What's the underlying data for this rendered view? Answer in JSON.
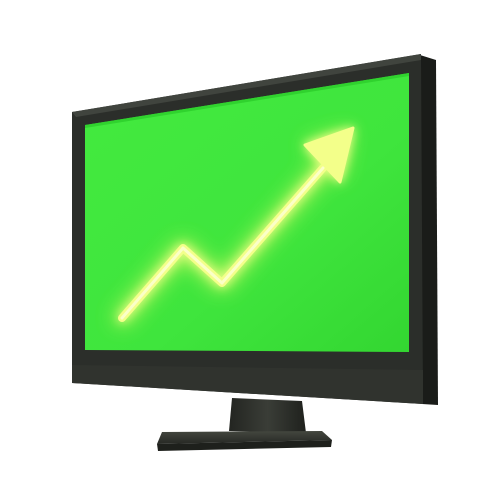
{
  "scene": {
    "subject": "computer-monitor",
    "screen": {
      "background_color": "#3fe53d",
      "screen_edge_color": "#2ccd2b"
    },
    "trend_arrow": {
      "icon": "trend-up-arrow-icon",
      "direction": "up-right",
      "glow_color": "#eaff6a",
      "core_color": "#f8ffb0"
    },
    "colors": {
      "bezel": "#2b2e2a",
      "bezel_highlight": "#40443e",
      "bezel_side": "#1a1c19",
      "stand": "#2f322d",
      "base": "#3a3d37",
      "background": "#ffffff"
    }
  }
}
